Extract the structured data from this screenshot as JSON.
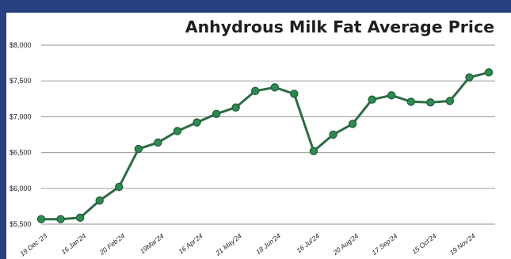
{
  "chart_data": {
    "type": "line",
    "title": "Anhydrous Milk Fat Average Price",
    "xlabel": "",
    "ylabel": "",
    "ylim": [
      5500,
      8000
    ],
    "yticks": [
      5500,
      6000,
      6500,
      7000,
      7500,
      8000
    ],
    "ytick_labels": [
      "$5,500",
      "$6,000",
      "$6,500",
      "$7,000",
      "$7,500",
      "$8,000"
    ],
    "x_tick_labels": [
      "19 Dec '23",
      "16 Jan'24",
      "20 Feb'24",
      "19Mar'24",
      "16 Apr'24",
      "21 May'24",
      "18 Jun'24",
      "16 Jul'24",
      "20 Aug'24",
      "17 Sep'24",
      "15 Oct'24",
      "19 Nov'24"
    ],
    "grid": true,
    "colors": {
      "line": "#2c6b45",
      "marker": "#2f8a50",
      "grid": "#a7a7a7",
      "frame": "#27407f"
    },
    "series": [
      {
        "values": [
          5570,
          5570,
          5590,
          5830,
          6020,
          6550,
          6640,
          6800,
          6920,
          7040,
          7130,
          7360,
          7410,
          7320,
          6520,
          6750,
          6900,
          7240,
          7300,
          7210,
          7200,
          7220,
          7550,
          7620
        ]
      }
    ]
  }
}
